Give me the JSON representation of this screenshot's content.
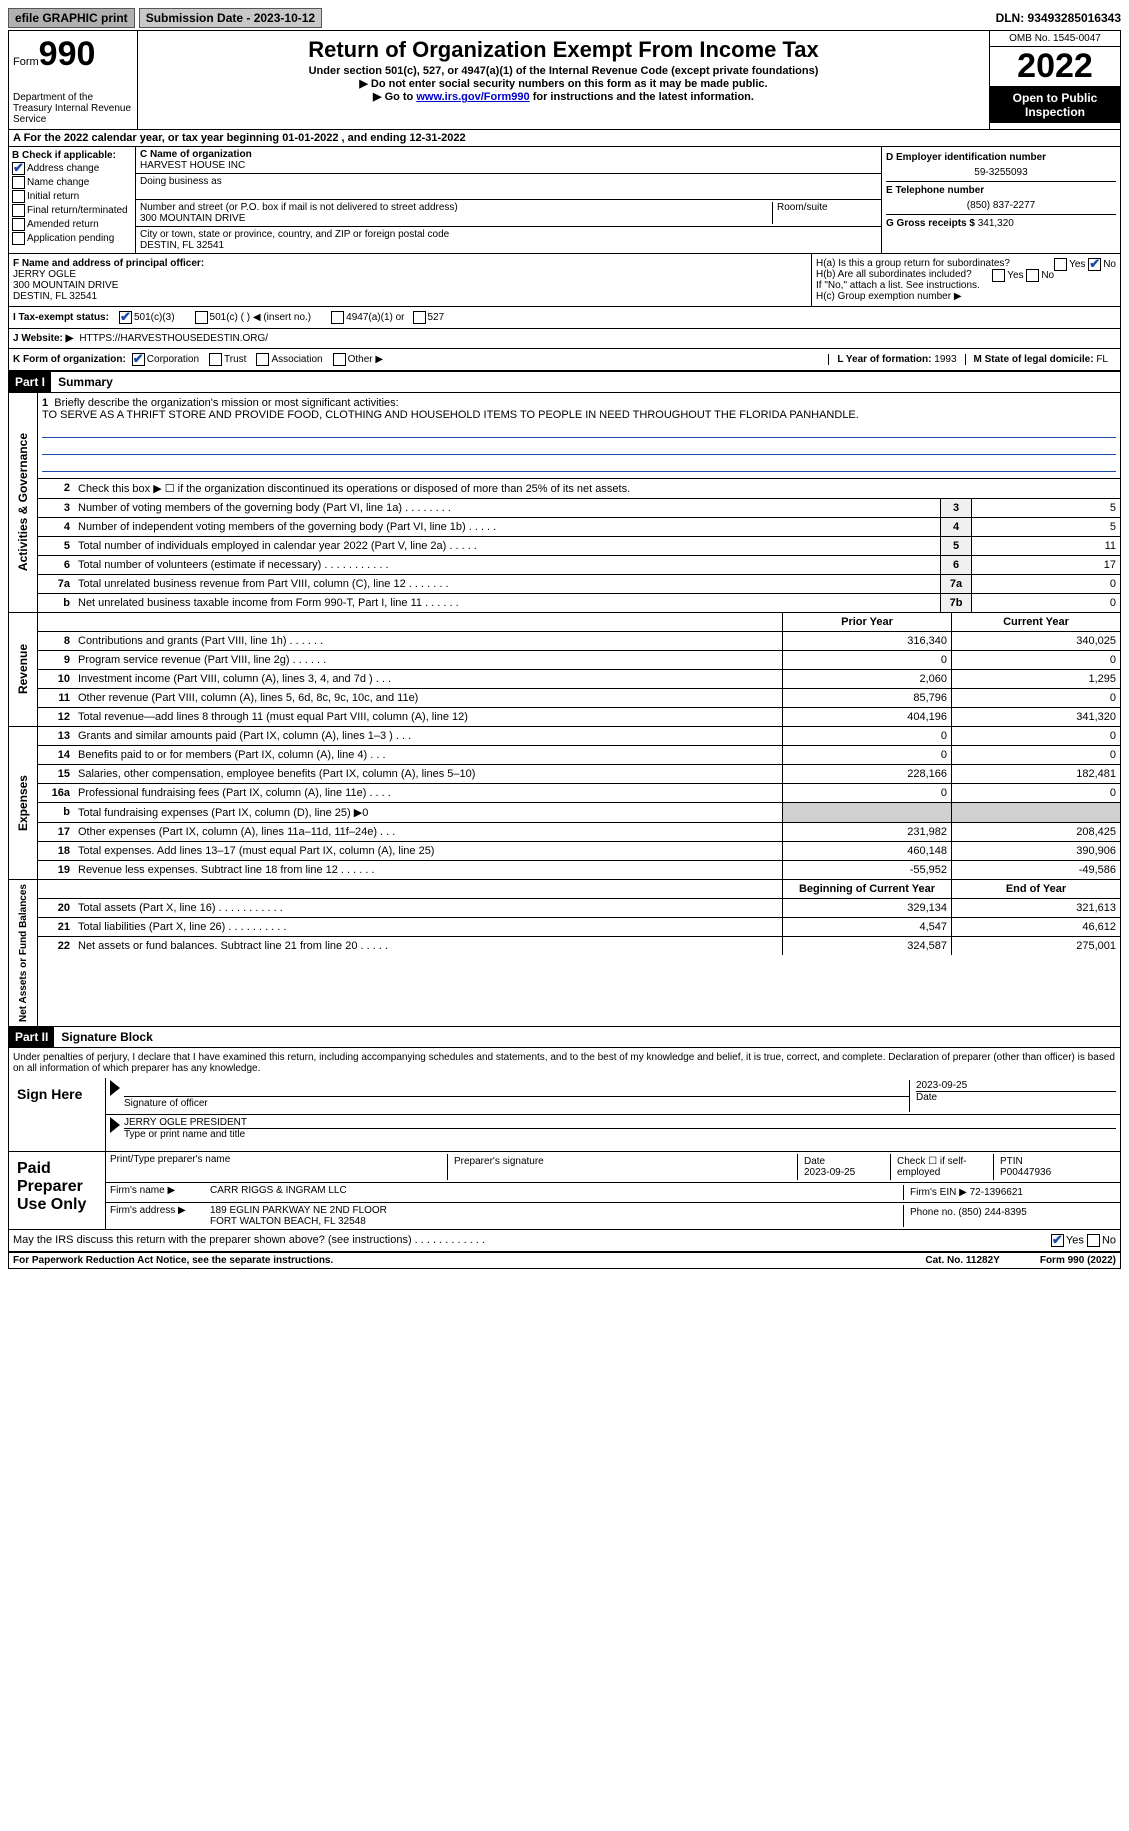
{
  "topbar": {
    "efile": "efile GRAPHIC print",
    "submission": "Submission Date - 2023-10-12",
    "dln": "DLN: 93493285016343"
  },
  "header": {
    "form_label": "Form",
    "form_num": "990",
    "dept": "Department of the Treasury Internal Revenue Service",
    "title": "Return of Organization Exempt From Income Tax",
    "subtitle": "Under section 501(c), 527, or 4947(a)(1) of the Internal Revenue Code (except private foundations)",
    "note1": "▶ Do not enter social security numbers on this form as it may be made public.",
    "note2_pre": "▶ Go to ",
    "note2_link": "www.irs.gov/Form990",
    "note2_post": " for instructions and the latest information.",
    "omb": "OMB No. 1545-0047",
    "year": "2022",
    "open": "Open to Public Inspection"
  },
  "row_a": "A   For the 2022 calendar year, or tax year beginning 01-01-2022    , and ending 12-31-2022",
  "col_b": {
    "label": "B Check if applicable:",
    "addr_change": "Address change",
    "name_change": "Name change",
    "initial": "Initial return",
    "final": "Final return/terminated",
    "amended": "Amended return",
    "app_pending": "Application pending"
  },
  "col_c": {
    "name_label": "C Name of organization",
    "name": "HARVEST HOUSE INC",
    "dba_label": "Doing business as",
    "addr_label": "Number and street (or P.O. box if mail is not delivered to street address)",
    "addr": "300 MOUNTAIN DRIVE",
    "room_label": "Room/suite",
    "city_label": "City or town, state or province, country, and ZIP or foreign postal code",
    "city": "DESTIN, FL  32541"
  },
  "col_d": {
    "ein_label": "D Employer identification number",
    "ein": "59-3255093",
    "phone_label": "E Telephone number",
    "phone": "(850) 837-2277",
    "gross_label": "G Gross receipts $",
    "gross": "341,320"
  },
  "f": {
    "label": "F Name and address of principal officer:",
    "name": "JERRY OGLE",
    "addr1": "300 MOUNTAIN DRIVE",
    "addr2": "DESTIN, FL  32541"
  },
  "h": {
    "ha": "H(a)  Is this a group return for subordinates?",
    "hb": "H(b)  Are all subordinates included?",
    "hb_note": "If \"No,\" attach a list. See instructions.",
    "hc": "H(c)  Group exemption number ▶"
  },
  "i": {
    "label": "I   Tax-exempt status:",
    "o1": "501(c)(3)",
    "o2": "501(c) (  ) ◀ (insert no.)",
    "o3": "4947(a)(1) or",
    "o4": "527"
  },
  "j": {
    "label": "J   Website: ▶",
    "value": "HTTPS://HARVESTHOUSEDESTIN.ORG/"
  },
  "k": {
    "label": "K Form of organization:",
    "corp": "Corporation",
    "trust": "Trust",
    "assoc": "Association",
    "other": "Other ▶",
    "l_label": "L Year of formation:",
    "l_val": "1993",
    "m_label": "M State of legal domicile:",
    "m_val": "FL"
  },
  "part1": {
    "header": "Part I",
    "title": "Summary",
    "vtext_ag": "Activities & Governance",
    "vtext_rev": "Revenue",
    "vtext_exp": "Expenses",
    "vtext_na": "Net Assets or Fund Balances",
    "l1_label": "Briefly describe the organization's mission or most significant activities:",
    "l1_text": "TO SERVE AS A THRIFT STORE AND PROVIDE FOOD, CLOTHING AND HOUSEHOLD ITEMS TO PEOPLE IN NEED THROUGHOUT THE FLORIDA PANHANDLE.",
    "l2": "Check this box ▶ ☐ if the organization discontinued its operations or disposed of more than 25% of its net assets.",
    "lines_ag": [
      {
        "n": "3",
        "d": "Number of voting members of the governing body (Part VI, line 1a)   .    .    .    .    .    .    .    .",
        "b": "3",
        "v": "5"
      },
      {
        "n": "4",
        "d": "Number of independent voting members of the governing body (Part VI, line 1b)  .    .    .    .    .",
        "b": "4",
        "v": "5"
      },
      {
        "n": "5",
        "d": "Total number of individuals employed in calendar year 2022 (Part V, line 2a)   .    .    .    .    .",
        "b": "5",
        "v": "11"
      },
      {
        "n": "6",
        "d": "Total number of volunteers (estimate if necessary)    .    .    .    .    .    .    .    .    .    .    .",
        "b": "6",
        "v": "17"
      },
      {
        "n": "7a",
        "d": "Total unrelated business revenue from Part VIII, column (C), line 12   .    .    .    .    .    .    .",
        "b": "7a",
        "v": "0"
      },
      {
        "n": "b",
        "d": "Net unrelated business taxable income from Form 990-T, Part I, line 11   .    .    .    .    .    .",
        "b": "7b",
        "v": "0"
      }
    ],
    "col_prior": "Prior Year",
    "col_curr": "Current Year",
    "lines_rev": [
      {
        "n": "8",
        "d": "Contributions and grants (Part VIII, line 1h)    .    .    .    .    .    .",
        "p": "316,340",
        "c": "340,025"
      },
      {
        "n": "9",
        "d": "Program service revenue (Part VIII, line 2g)    .    .    .    .    .    .",
        "p": "0",
        "c": "0"
      },
      {
        "n": "10",
        "d": "Investment income (Part VIII, column (A), lines 3, 4, and 7d )    .    .    .",
        "p": "2,060",
        "c": "1,295"
      },
      {
        "n": "11",
        "d": "Other revenue (Part VIII, column (A), lines 5, 6d, 8c, 9c, 10c, and 11e)",
        "p": "85,796",
        "c": "0"
      },
      {
        "n": "12",
        "d": "Total revenue—add lines 8 through 11 (must equal Part VIII, column (A), line 12)",
        "p": "404,196",
        "c": "341,320"
      }
    ],
    "lines_exp": [
      {
        "n": "13",
        "d": "Grants and similar amounts paid (Part IX, column (A), lines 1–3 )   .    .    .",
        "p": "0",
        "c": "0"
      },
      {
        "n": "14",
        "d": "Benefits paid to or for members (Part IX, column (A), line 4)   .    .    .",
        "p": "0",
        "c": "0"
      },
      {
        "n": "15",
        "d": "Salaries, other compensation, employee benefits (Part IX, column (A), lines 5–10)",
        "p": "228,166",
        "c": "182,481"
      },
      {
        "n": "16a",
        "d": "Professional fundraising fees (Part IX, column (A), line 11e)   .    .    .    .",
        "p": "0",
        "c": "0"
      },
      {
        "n": "b",
        "d": "Total fundraising expenses (Part IX, column (D), line 25) ▶0",
        "p": "",
        "c": "",
        "shaded": true
      },
      {
        "n": "17",
        "d": "Other expenses (Part IX, column (A), lines 11a–11d, 11f–24e)   .    .    .",
        "p": "231,982",
        "c": "208,425"
      },
      {
        "n": "18",
        "d": "Total expenses. Add lines 13–17 (must equal Part IX, column (A), line 25)",
        "p": "460,148",
        "c": "390,906"
      },
      {
        "n": "19",
        "d": "Revenue less expenses. Subtract line 18 from line 12  .    .    .    .    .    .",
        "p": "-55,952",
        "c": "-49,586"
      }
    ],
    "col_begin": "Beginning of Current Year",
    "col_end": "End of Year",
    "lines_na": [
      {
        "n": "20",
        "d": "Total assets (Part X, line 16)  .    .    .    .    .    .    .    .    .    .    .",
        "p": "329,134",
        "c": "321,613"
      },
      {
        "n": "21",
        "d": "Total liabilities (Part X, line 26)   .    .    .    .    .    .    .    .    .    .",
        "p": "4,547",
        "c": "46,612"
      },
      {
        "n": "22",
        "d": "Net assets or fund balances. Subtract line 21 from line 20  .    .    .    .    .",
        "p": "324,587",
        "c": "275,001"
      }
    ]
  },
  "part2": {
    "header": "Part II",
    "title": "Signature Block",
    "penalties": "Under penalties of perjury, I declare that I have examined this return, including accompanying schedules and statements, and to the best of my knowledge and belief, it is true, correct, and complete. Declaration of preparer (other than officer) is based on all information of which preparer has any knowledge.",
    "sign_here": "Sign Here",
    "sig_officer": "Signature of officer",
    "sig_date": "2023-09-25",
    "sig_name": "JERRY OGLE  PRESIDENT",
    "sig_name_label": "Type or print name and title",
    "paid_label": "Paid Preparer Use Only",
    "prep_name_label": "Print/Type preparer's name",
    "prep_sig_label": "Preparer's signature",
    "prep_date_label": "Date",
    "prep_date": "2023-09-25",
    "prep_check_label": "Check ☐ if self-employed",
    "ptin_label": "PTIN",
    "ptin": "P00447936",
    "firm_name_label": "Firm's name    ▶",
    "firm_name": "CARR RIGGS & INGRAM LLC",
    "firm_ein_label": "Firm's EIN ▶",
    "firm_ein": "72-1396621",
    "firm_addr_label": "Firm's address ▶",
    "firm_addr1": "189 EGLIN PARKWAY NE 2ND FLOOR",
    "firm_addr2": "FORT WALTON BEACH, FL  32548",
    "firm_phone_label": "Phone no.",
    "firm_phone": "(850) 244-8395",
    "discuss": "May the IRS discuss this return with the preparer shown above? (see instructions)   .    .    .    .    .    .    .    .    .    .    .    ."
  },
  "footer": {
    "pra": "For Paperwork Reduction Act Notice, see the separate instructions.",
    "cat": "Cat. No. 11282Y",
    "form": "Form 990 (2022)"
  }
}
